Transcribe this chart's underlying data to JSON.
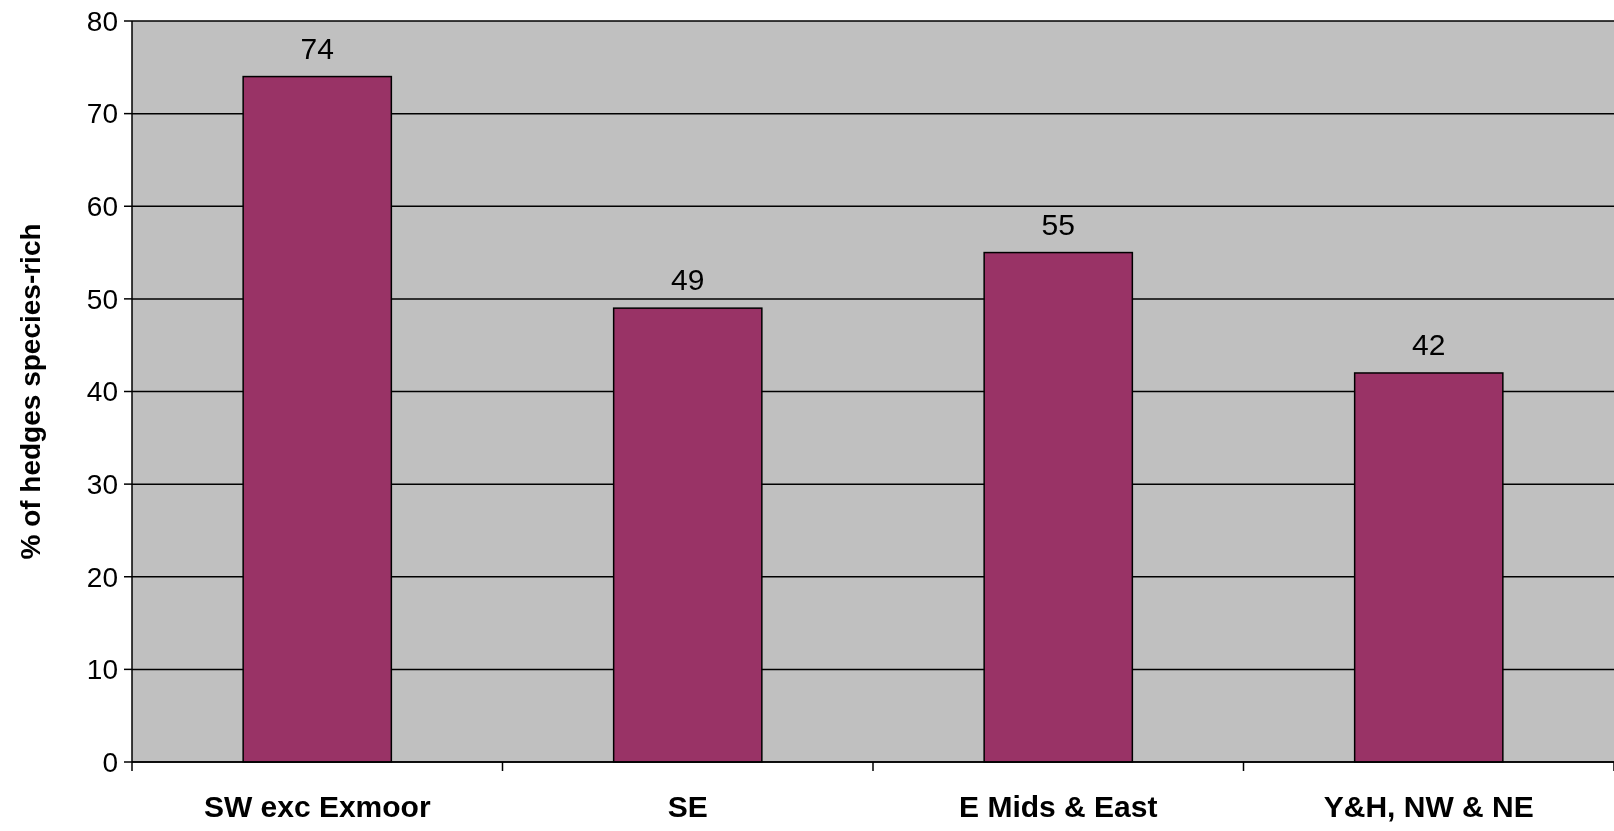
{
  "chart_data": {
    "type": "bar",
    "ylabel": "% of hedges species-rich",
    "categories": [
      "SW exc Exmoor",
      "SE",
      "E Mids & East",
      "Y&H, NW & NE"
    ],
    "values": [
      74,
      49,
      55,
      42
    ],
    "color": "#993366",
    "ylim": [
      0,
      80
    ],
    "yticks": [
      0,
      10,
      20,
      30,
      40,
      50,
      60,
      70,
      80
    ],
    "grid": "y",
    "data_labels": true
  }
}
